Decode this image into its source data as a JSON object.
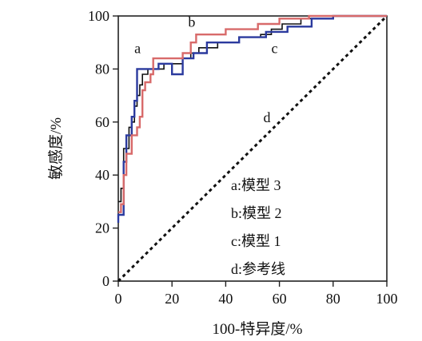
{
  "chart_data": {
    "type": "line",
    "xlabel": "100-特异度/%",
    "ylabel": "敏感度/%",
    "xlim": [
      0,
      100
    ],
    "ylim": [
      0,
      100
    ],
    "x_ticks": [
      "0",
      "20",
      "40",
      "60",
      "80",
      "100"
    ],
    "y_ticks": [
      "0",
      "20",
      "40",
      "60",
      "80",
      "100"
    ],
    "grid": false,
    "legend_position": "inside-lower-right",
    "legend": [
      "a:模型 3",
      "b:模型 2",
      "c:模型 1",
      "d:参考线"
    ],
    "series": [
      {
        "name": "a",
        "color": "#2b3a9e",
        "points": [
          [
            0,
            22
          ],
          [
            0,
            25
          ],
          [
            2,
            25
          ],
          [
            2,
            45
          ],
          [
            3,
            45
          ],
          [
            3,
            55
          ],
          [
            5,
            55
          ],
          [
            5,
            62
          ],
          [
            6,
            62
          ],
          [
            6,
            68
          ],
          [
            7,
            68
          ],
          [
            7,
            80
          ],
          [
            15,
            80
          ],
          [
            15,
            82
          ],
          [
            20,
            82
          ],
          [
            20,
            78
          ],
          [
            24,
            78
          ],
          [
            24,
            84
          ],
          [
            28,
            84
          ],
          [
            28,
            86
          ],
          [
            33,
            86
          ],
          [
            33,
            90
          ],
          [
            45,
            90
          ],
          [
            45,
            92
          ],
          [
            55,
            92
          ],
          [
            55,
            94
          ],
          [
            63,
            94
          ],
          [
            63,
            96
          ],
          [
            72,
            96
          ],
          [
            72,
            99
          ],
          [
            80,
            99
          ],
          [
            80,
            100
          ],
          [
            100,
            100
          ]
        ]
      },
      {
        "name": "b",
        "color": "#d86a6a",
        "points": [
          [
            0,
            26
          ],
          [
            1,
            26
          ],
          [
            1,
            29
          ],
          [
            2,
            29
          ],
          [
            2,
            40
          ],
          [
            3,
            40
          ],
          [
            3,
            48
          ],
          [
            5,
            48
          ],
          [
            5,
            55
          ],
          [
            7,
            55
          ],
          [
            7,
            58
          ],
          [
            8,
            58
          ],
          [
            8,
            62
          ],
          [
            9,
            62
          ],
          [
            9,
            72
          ],
          [
            10,
            72
          ],
          [
            10,
            75
          ],
          [
            12,
            75
          ],
          [
            12,
            78
          ],
          [
            13,
            78
          ],
          [
            13,
            84
          ],
          [
            24,
            84
          ],
          [
            24,
            86
          ],
          [
            27,
            86
          ],
          [
            27,
            90
          ],
          [
            29,
            90
          ],
          [
            29,
            93
          ],
          [
            40,
            93
          ],
          [
            40,
            95
          ],
          [
            52,
            95
          ],
          [
            52,
            97
          ],
          [
            60,
            97
          ],
          [
            60,
            99
          ],
          [
            71,
            99
          ],
          [
            71,
            100
          ],
          [
            100,
            100
          ]
        ]
      },
      {
        "name": "c",
        "color": "#111111",
        "points": [
          [
            0,
            30
          ],
          [
            1,
            30
          ],
          [
            1,
            35
          ],
          [
            2,
            35
          ],
          [
            2,
            50
          ],
          [
            4,
            50
          ],
          [
            4,
            58
          ],
          [
            5,
            58
          ],
          [
            5,
            60
          ],
          [
            6,
            60
          ],
          [
            6,
            66
          ],
          [
            7,
            66
          ],
          [
            7,
            70
          ],
          [
            8,
            70
          ],
          [
            8,
            74
          ],
          [
            9,
            74
          ],
          [
            9,
            78
          ],
          [
            11,
            78
          ],
          [
            11,
            80
          ],
          [
            17,
            80
          ],
          [
            17,
            82
          ],
          [
            24,
            82
          ],
          [
            24,
            84
          ],
          [
            27,
            84
          ],
          [
            27,
            86
          ],
          [
            30,
            86
          ],
          [
            30,
            88
          ],
          [
            37,
            88
          ],
          [
            37,
            90
          ],
          [
            45,
            90
          ],
          [
            45,
            92
          ],
          [
            53,
            92
          ],
          [
            53,
            93
          ],
          [
            57,
            93
          ],
          [
            57,
            95
          ],
          [
            61,
            95
          ],
          [
            61,
            97
          ],
          [
            68,
            97
          ],
          [
            68,
            99
          ],
          [
            80,
            99
          ],
          [
            80,
            100
          ],
          [
            100,
            100
          ]
        ]
      },
      {
        "name": "d",
        "color": "#111111",
        "dashed": true,
        "points": [
          [
            0,
            0
          ],
          [
            100,
            100
          ]
        ]
      }
    ],
    "curve_labels": [
      {
        "text": "a",
        "series": "a"
      },
      {
        "text": "b",
        "series": "b"
      },
      {
        "text": "c",
        "series": "c"
      },
      {
        "text": "d",
        "series": "d"
      }
    ]
  }
}
